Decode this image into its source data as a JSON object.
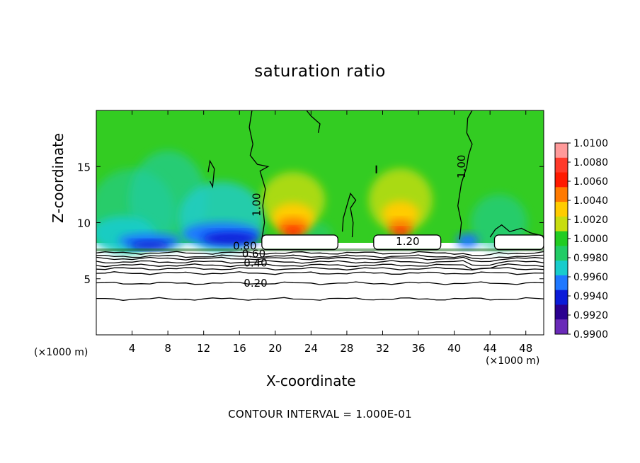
{
  "chart_data": {
    "type": "heatmap",
    "title": "saturation ratio",
    "xlabel": "X-coordinate",
    "ylabel": "Z-coordinate",
    "x_unit_label": "(×1000 m)",
    "x_ticks": [
      "4",
      "8",
      "12",
      "16",
      "20",
      "24",
      "28",
      "32",
      "36",
      "40",
      "44",
      "48"
    ],
    "y_ticks": [
      "5",
      "10",
      "15"
    ],
    "xlim": [
      0,
      50
    ],
    "ylim": [
      0,
      20
    ],
    "footer": "CONTOUR INTERVAL = 1.000E-01",
    "colorbar": {
      "labels": [
        "1.0100",
        "1.0080",
        "1.0060",
        "1.0040",
        "1.0020",
        "1.0000",
        "0.9980",
        "0.9960",
        "0.9940",
        "0.9920",
        "0.9900"
      ],
      "range": [
        0.99,
        1.01
      ],
      "colors": [
        "#ff9a9a",
        "#ff3a2a",
        "#ff1a00",
        "#ff7a00",
        "#ffcc00",
        "#c8dd10",
        "#22cc22",
        "#22cc66",
        "#18cccc",
        "#1f78ff",
        "#0b1bd8",
        "#2a0090",
        "#6a2ab8"
      ]
    },
    "contour_labels": [
      "1.00",
      "1.00",
      "1.20",
      "0.80",
      "0.60",
      "0.40",
      "0.20"
    ],
    "series_fields": {
      "background_value": 0.999,
      "high_supersaturation_regions_x": [
        [
          19,
          26
        ],
        [
          29,
          38
        ]
      ],
      "low_subsaturation_regions_x": [
        [
          3,
          10
        ],
        [
          11,
          19
        ],
        [
          24,
          28
        ],
        [
          40,
          44
        ]
      ],
      "cloud_base_z": 8.5,
      "lower_contour_levels": [
        0.2,
        0.4,
        0.6,
        0.8
      ]
    }
  }
}
